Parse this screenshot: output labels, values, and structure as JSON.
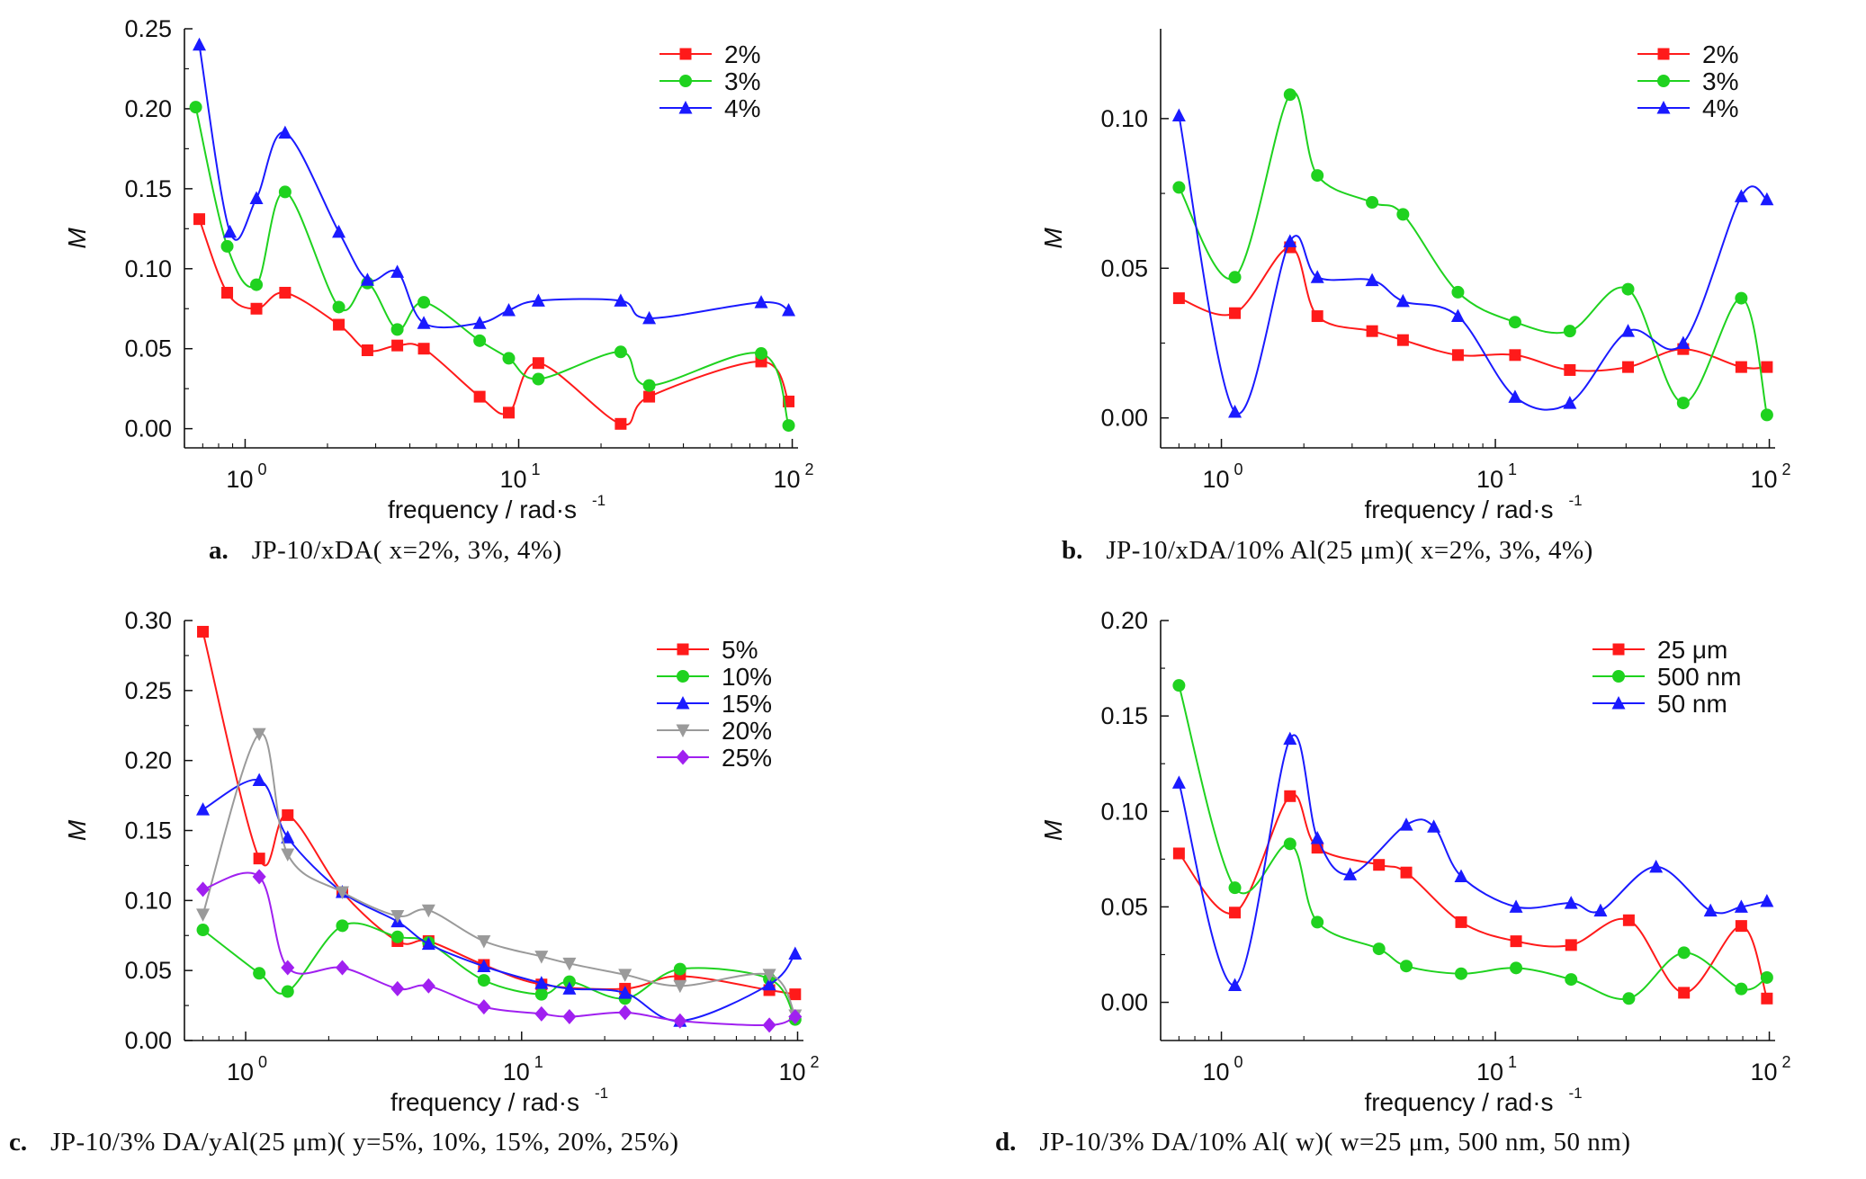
{
  "captions": [
    {
      "letter": "a.",
      "text": "JP-10/xDA( x=2%, 3%, 4%)"
    },
    {
      "letter": "b.",
      "text": "JP-10/xDA/10% Al(25 μm)( x=2%, 3%, 4%)"
    },
    {
      "letter": "c.",
      "text": "JP-10/3% DA/yAl(25 μm)( y=5%, 10%, 15%, 20%, 25%)"
    },
    {
      "letter": "d.",
      "text": "JP-10/3% DA/10% Al( w)( w=25 μm, 500 nm, 50 nm)"
    }
  ],
  "colors": {
    "red": "#ff1a1a",
    "green": "#1fd21f",
    "blue": "#1a1aff",
    "gray": "#9a9a9a",
    "purple": "#a020f0"
  },
  "chart_data": [
    {
      "type": "line",
      "xscale": "log",
      "xlim": [
        0.6,
        105
      ],
      "ylim": [
        -0.012,
        0.25
      ],
      "yticks": [
        "0.00",
        "0.05",
        "0.10",
        "0.15",
        "0.20",
        "0.25"
      ],
      "xticks": [
        "10^0",
        "10^1",
        "10^2"
      ],
      "xlabel": "frequency / rad·s-1",
      "ylabel": "M",
      "legend": "top-right",
      "series": [
        {
          "name": "2%",
          "color": "red",
          "marker": "square",
          "x": [
            0.68,
            0.86,
            1.1,
            1.4,
            2.2,
            2.8,
            3.6,
            4.5,
            7.2,
            9.2,
            11.8,
            23.6,
            30,
            77,
            97
          ],
          "y": [
            0.131,
            0.085,
            0.075,
            0.085,
            0.065,
            0.049,
            0.052,
            0.05,
            0.02,
            0.01,
            0.041,
            0.003,
            0.02,
            0.042,
            0.017
          ]
        },
        {
          "name": "3%",
          "color": "green",
          "marker": "circle",
          "x": [
            0.66,
            0.86,
            1.1,
            1.4,
            2.2,
            2.8,
            3.6,
            4.5,
            7.2,
            9.2,
            11.8,
            23.6,
            30,
            77,
            97
          ],
          "y": [
            0.201,
            0.114,
            0.09,
            0.148,
            0.076,
            0.091,
            0.062,
            0.079,
            0.055,
            0.044,
            0.031,
            0.048,
            0.027,
            0.047,
            0.002
          ]
        },
        {
          "name": "4%",
          "color": "blue",
          "marker": "triangle",
          "x": [
            0.68,
            0.88,
            1.1,
            1.4,
            2.2,
            2.8,
            3.6,
            4.5,
            7.2,
            9.2,
            11.8,
            23.6,
            30,
            77,
            97
          ],
          "y": [
            0.24,
            0.123,
            0.144,
            0.185,
            0.123,
            0.093,
            0.098,
            0.066,
            0.066,
            0.074,
            0.08,
            0.08,
            0.069,
            0.079,
            0.074
          ]
        }
      ]
    },
    {
      "type": "line",
      "xscale": "log",
      "xlim": [
        0.6,
        105
      ],
      "ylim": [
        -0.01,
        0.13
      ],
      "yticks": [
        "0.00",
        "0.05",
        "0.10"
      ],
      "xticks": [
        "10^0",
        "10^1",
        "10^2"
      ],
      "xlabel": "frequency / rad·s-1",
      "ylabel": "M",
      "legend": "top-right",
      "series": [
        {
          "name": "2%",
          "color": "red",
          "marker": "square",
          "x": [
            0.7,
            1.12,
            1.78,
            2.24,
            3.55,
            4.6,
            7.3,
            11.8,
            18.7,
            30.5,
            48.5,
            79,
            98
          ],
          "y": [
            0.04,
            0.035,
            0.057,
            0.034,
            0.029,
            0.026,
            0.021,
            0.021,
            0.016,
            0.017,
            0.023,
            0.017,
            0.017
          ]
        },
        {
          "name": "3%",
          "color": "green",
          "marker": "circle",
          "x": [
            0.7,
            1.12,
            1.78,
            2.24,
            3.55,
            4.6,
            7.3,
            11.8,
            18.7,
            30.5,
            48.5,
            79,
            98
          ],
          "y": [
            0.077,
            0.047,
            0.108,
            0.081,
            0.072,
            0.068,
            0.042,
            0.032,
            0.029,
            0.043,
            0.005,
            0.04,
            0.001
          ]
        },
        {
          "name": "4%",
          "color": "blue",
          "marker": "triangle",
          "x": [
            0.7,
            1.12,
            1.78,
            2.24,
            3.55,
            4.6,
            7.3,
            11.8,
            18.7,
            30.5,
            48.5,
            79,
            98
          ],
          "y": [
            0.101,
            0.002,
            0.059,
            0.047,
            0.046,
            0.039,
            0.034,
            0.007,
            0.005,
            0.029,
            0.025,
            0.074,
            0.073
          ]
        }
      ]
    },
    {
      "type": "line",
      "xscale": "log",
      "xlim": [
        0.6,
        105
      ],
      "ylim": [
        0.0,
        0.3
      ],
      "yticks": [
        "0.00",
        "0.05",
        "0.10",
        "0.15",
        "0.20",
        "0.25",
        "0.30"
      ],
      "xticks": [
        "10^0",
        "10^1",
        "10^2"
      ],
      "xlabel": "frequency / rad·s-1",
      "ylabel": "M",
      "legend": "top-right",
      "series": [
        {
          "name": "5%",
          "color": "red",
          "marker": "square",
          "x": [
            0.7,
            1.12,
            1.42,
            2.24,
            3.55,
            4.6,
            7.3,
            11.8,
            23.7,
            37.5,
            79,
            98
          ],
          "y": [
            0.292,
            0.13,
            0.161,
            0.106,
            0.071,
            0.071,
            0.054,
            0.04,
            0.037,
            0.046,
            0.036,
            0.033
          ]
        },
        {
          "name": "10%",
          "color": "green",
          "marker": "circle",
          "x": [
            0.7,
            1.12,
            1.42,
            2.24,
            3.55,
            4.6,
            7.3,
            11.8,
            14.9,
            23.7,
            37.5,
            79,
            98
          ],
          "y": [
            0.079,
            0.048,
            0.035,
            0.082,
            0.074,
            0.07,
            0.043,
            0.033,
            0.042,
            0.03,
            0.051,
            0.044,
            0.015
          ]
        },
        {
          "name": "15%",
          "color": "blue",
          "marker": "triangle",
          "x": [
            0.7,
            1.12,
            1.42,
            2.24,
            3.55,
            4.6,
            7.3,
            11.8,
            14.9,
            23.7,
            37.5,
            79,
            98
          ],
          "y": [
            0.165,
            0.186,
            0.145,
            0.106,
            0.085,
            0.069,
            0.053,
            0.041,
            0.037,
            0.034,
            0.014,
            0.04,
            0.062
          ]
        },
        {
          "name": "20%",
          "color": "gray",
          "marker": "triangle-down",
          "x": [
            0.7,
            1.12,
            1.42,
            2.24,
            3.55,
            4.6,
            7.3,
            11.8,
            14.9,
            23.7,
            37.5,
            79,
            98
          ],
          "y": [
            0.09,
            0.219,
            0.133,
            0.106,
            0.089,
            0.093,
            0.071,
            0.06,
            0.055,
            0.047,
            0.039,
            0.047,
            0.018
          ]
        },
        {
          "name": "25%",
          "color": "purple",
          "marker": "diamond",
          "x": [
            0.7,
            1.12,
            1.42,
            2.24,
            3.55,
            4.6,
            7.3,
            11.8,
            14.9,
            23.7,
            37.5,
            79,
            98
          ],
          "y": [
            0.108,
            0.117,
            0.052,
            0.052,
            0.037,
            0.039,
            0.024,
            0.019,
            0.017,
            0.02,
            0.014,
            0.011,
            0.017
          ]
        }
      ]
    },
    {
      "type": "line",
      "xscale": "log",
      "xlim": [
        0.6,
        105
      ],
      "ylim": [
        -0.02,
        0.2
      ],
      "yticks": [
        "0.00",
        "0.05",
        "0.10",
        "0.15",
        "0.20"
      ],
      "xticks": [
        "10^0",
        "10^1",
        "10^2"
      ],
      "xlabel": "frequency / rad·s-1",
      "ylabel": "M",
      "legend": "top-right",
      "series": [
        {
          "name": "25 μm",
          "color": "red",
          "marker": "square",
          "x": [
            0.7,
            1.12,
            1.78,
            2.24,
            3.76,
            4.73,
            7.5,
            11.9,
            18.9,
            30.7,
            48.8,
            79,
            98
          ],
          "y": [
            0.078,
            0.047,
            0.108,
            0.081,
            0.072,
            0.068,
            0.042,
            0.032,
            0.03,
            0.043,
            0.005,
            0.04,
            0.002
          ]
        },
        {
          "name": "500 nm",
          "color": "green",
          "marker": "circle",
          "x": [
            0.7,
            1.12,
            1.78,
            2.24,
            3.76,
            4.73,
            7.5,
            11.9,
            18.9,
            30.7,
            48.8,
            79,
            98
          ],
          "y": [
            0.166,
            0.06,
            0.083,
            0.042,
            0.028,
            0.019,
            0.015,
            0.018,
            0.012,
            0.002,
            0.026,
            0.007,
            0.013
          ]
        },
        {
          "name": "50 nm",
          "color": "blue",
          "marker": "triangle",
          "x": [
            0.7,
            1.12,
            1.78,
            2.24,
            2.95,
            4.73,
            5.96,
            7.5,
            11.9,
            18.9,
            24.2,
            38.6,
            61,
            79,
            98
          ],
          "y": [
            0.115,
            0.009,
            0.138,
            0.086,
            0.067,
            0.093,
            0.092,
            0.066,
            0.05,
            0.052,
            0.048,
            0.071,
            0.048,
            0.05,
            0.053
          ]
        }
      ]
    }
  ]
}
